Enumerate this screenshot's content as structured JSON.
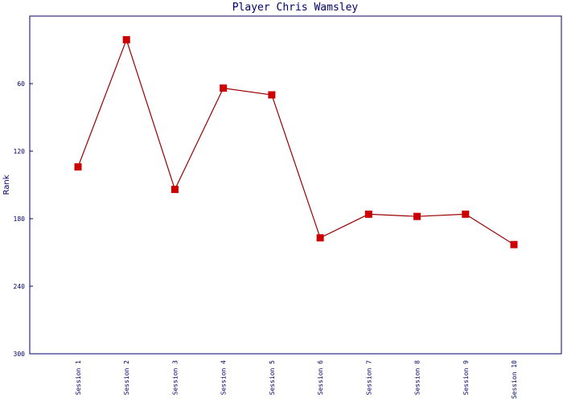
{
  "chart_data": {
    "type": "line",
    "title": "Player Chris Wamsley",
    "y_label": "Rank",
    "categories": [
      "Session 1",
      "Session 2",
      "Session 3",
      "Session 4",
      "Session 5",
      "Session 6",
      "Session 7",
      "Session 8",
      "Session 9",
      "Session 10"
    ],
    "series": [
      {
        "name": "Rank",
        "color": "#990000",
        "marker_color": "#cc0000",
        "values": [
          134,
          21,
          154,
          64,
          70,
          197,
          176,
          178,
          176,
          203
        ]
      }
    ],
    "ylim": [
      300,
      0
    ],
    "yticks": [
      60,
      120,
      180,
      240,
      300
    ],
    "grid": false,
    "legend": false
  }
}
